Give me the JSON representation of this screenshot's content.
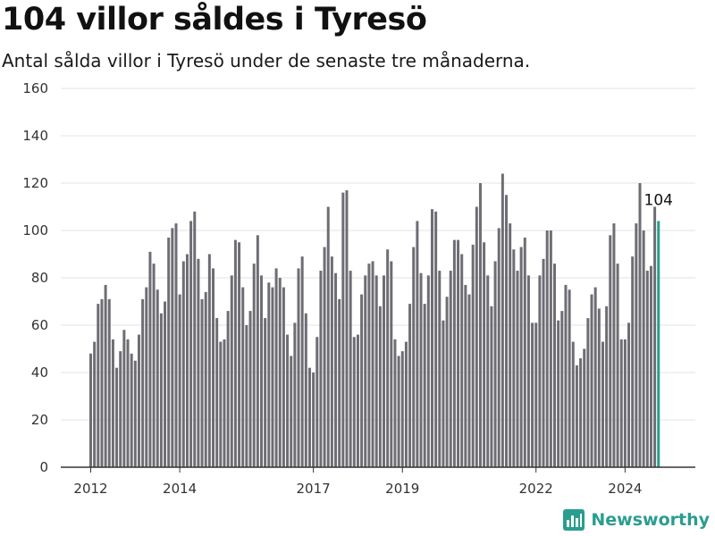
{
  "header": {
    "title": "104 villor såldes i Tyresö",
    "subtitle": "Antal sålda villor i Tyresö under de senaste tre månaderna."
  },
  "brand": {
    "name": "Newsworthy",
    "icon": "bar-chart-logo-icon",
    "color": "#2a9d8f"
  },
  "colors": {
    "bar": "#6e6d73",
    "highlight": "#2a9d8f",
    "grid": "#e3e3e3",
    "axis": "#333333"
  },
  "chart_data": {
    "type": "bar",
    "title": "104 villor såldes i Tyresö",
    "subtitle": "Antal sålda villor i Tyresö under de senaste tre månaderna.",
    "xlabel": "",
    "ylabel": "",
    "ylim": [
      0,
      160
    ],
    "yticks": [
      0,
      20,
      40,
      60,
      80,
      100,
      120,
      140,
      160
    ],
    "xticks": [
      {
        "label": "2012",
        "index": 0
      },
      {
        "label": "2014",
        "index": 24
      },
      {
        "label": "2017",
        "index": 60
      },
      {
        "label": "2019",
        "index": 84
      },
      {
        "label": "2022",
        "index": 120
      },
      {
        "label": "2024",
        "index": 144
      }
    ],
    "grid": true,
    "highlight_last": true,
    "last_label": "104",
    "values": [
      48,
      53,
      69,
      71,
      77,
      71,
      54,
      42,
      49,
      58,
      54,
      48,
      45,
      56,
      71,
      76,
      91,
      86,
      75,
      65,
      70,
      97,
      101,
      103,
      73,
      87,
      90,
      104,
      108,
      88,
      71,
      74,
      90,
      84,
      63,
      53,
      54,
      66,
      81,
      96,
      95,
      76,
      60,
      66,
      86,
      98,
      81,
      63,
      78,
      76,
      84,
      80,
      76,
      56,
      47,
      61,
      84,
      89,
      65,
      42,
      40,
      55,
      83,
      93,
      110,
      89,
      82,
      71,
      116,
      117,
      83,
      55,
      56,
      73,
      81,
      86,
      87,
      81,
      68,
      81,
      92,
      87,
      54,
      47,
      49,
      53,
      69,
      93,
      104,
      82,
      69,
      81,
      109,
      108,
      83,
      62,
      72,
      83,
      96,
      96,
      90,
      77,
      73,
      94,
      110,
      120,
      95,
      81,
      68,
      87,
      101,
      124,
      115,
      103,
      92,
      83,
      93,
      97,
      81,
      61,
      61,
      81,
      88,
      100,
      100,
      86,
      62,
      66,
      77,
      75,
      53,
      43,
      46,
      50,
      63,
      73,
      76,
      67,
      53,
      68,
      98,
      103,
      86,
      54,
      54,
      61,
      89,
      103,
      120,
      100,
      83,
      85,
      110,
      104
    ]
  }
}
